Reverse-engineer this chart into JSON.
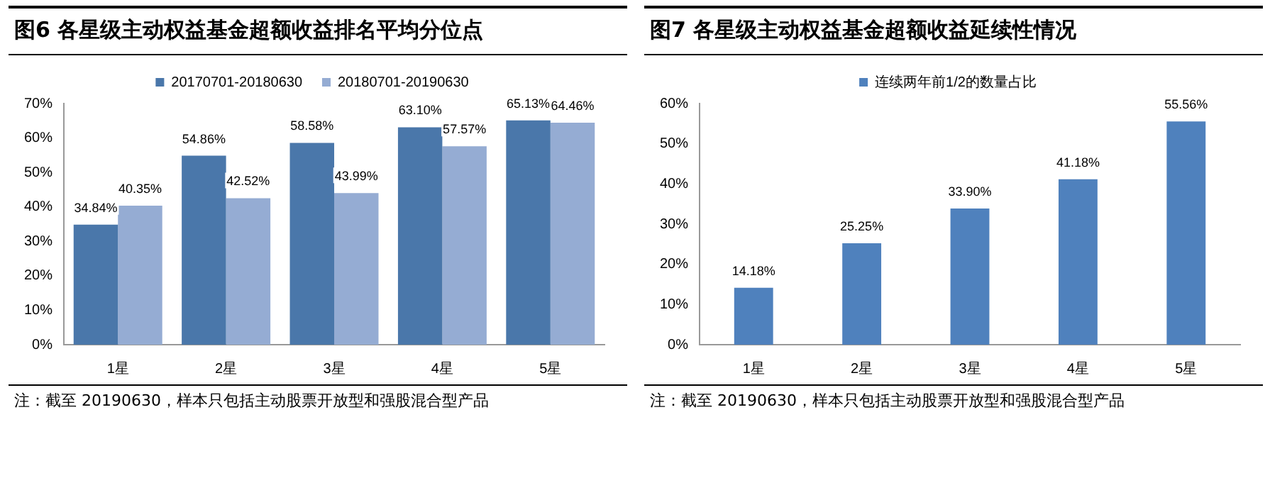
{
  "chart_data": [
    {
      "type": "bar",
      "title": "图6  各星级主动权益基金超额收益排名平均分位点",
      "categories": [
        "1星",
        "2星",
        "3星",
        "4星",
        "5星"
      ],
      "series": [
        {
          "name": "20170701-20180630",
          "color": "#4a77aa",
          "values": [
            34.84,
            54.86,
            58.58,
            63.1,
            65.13
          ],
          "value_labels": [
            "34.84%",
            "54.86%",
            "58.58%",
            "63.10%",
            "65.13%"
          ]
        },
        {
          "name": "20180701-20190630",
          "color": "#95acd3",
          "values": [
            40.35,
            42.52,
            43.99,
            57.57,
            64.46
          ],
          "value_labels": [
            "40.35%",
            "42.52%",
            "43.99%",
            "57.57%",
            "64.46%"
          ]
        }
      ],
      "ylim": [
        0,
        70
      ],
      "yticks": [
        {
          "value": 0,
          "label": "0%"
        },
        {
          "value": 10,
          "label": "10%"
        },
        {
          "value": 20,
          "label": "20%"
        },
        {
          "value": 30,
          "label": "30%"
        },
        {
          "value": 40,
          "label": "40%"
        },
        {
          "value": 50,
          "label": "50%"
        },
        {
          "value": 60,
          "label": "60%"
        },
        {
          "value": 70,
          "label": "70%"
        }
      ],
      "grid": false,
      "legend": "top",
      "annotations": [
        "注：截至 20190630，样本只包括主动股票开放型和强股混合型产品"
      ]
    },
    {
      "type": "bar",
      "title": "图7  各星级主动权益基金超额收益延续性情况",
      "categories": [
        "1星",
        "2星",
        "3星",
        "4星",
        "5星"
      ],
      "series": [
        {
          "name": "连续两年前1/2的数量占比",
          "color": "#4f81bd",
          "values": [
            14.18,
            25.25,
            33.9,
            41.18,
            55.56
          ],
          "value_labels": [
            "14.18%",
            "25.25%",
            "33.90%",
            "41.18%",
            "55.56%"
          ]
        }
      ],
      "ylim": [
        0,
        60
      ],
      "yticks": [
        {
          "value": 0,
          "label": "0%"
        },
        {
          "value": 10,
          "label": "10%"
        },
        {
          "value": 20,
          "label": "20%"
        },
        {
          "value": 30,
          "label": "30%"
        },
        {
          "value": 40,
          "label": "40%"
        },
        {
          "value": 50,
          "label": "50%"
        },
        {
          "value": 60,
          "label": "60%"
        }
      ],
      "grid": false,
      "legend": "top",
      "annotations": [
        "注：截至 20190630，样本只包括主动股票开放型和强股混合型产品"
      ]
    }
  ]
}
